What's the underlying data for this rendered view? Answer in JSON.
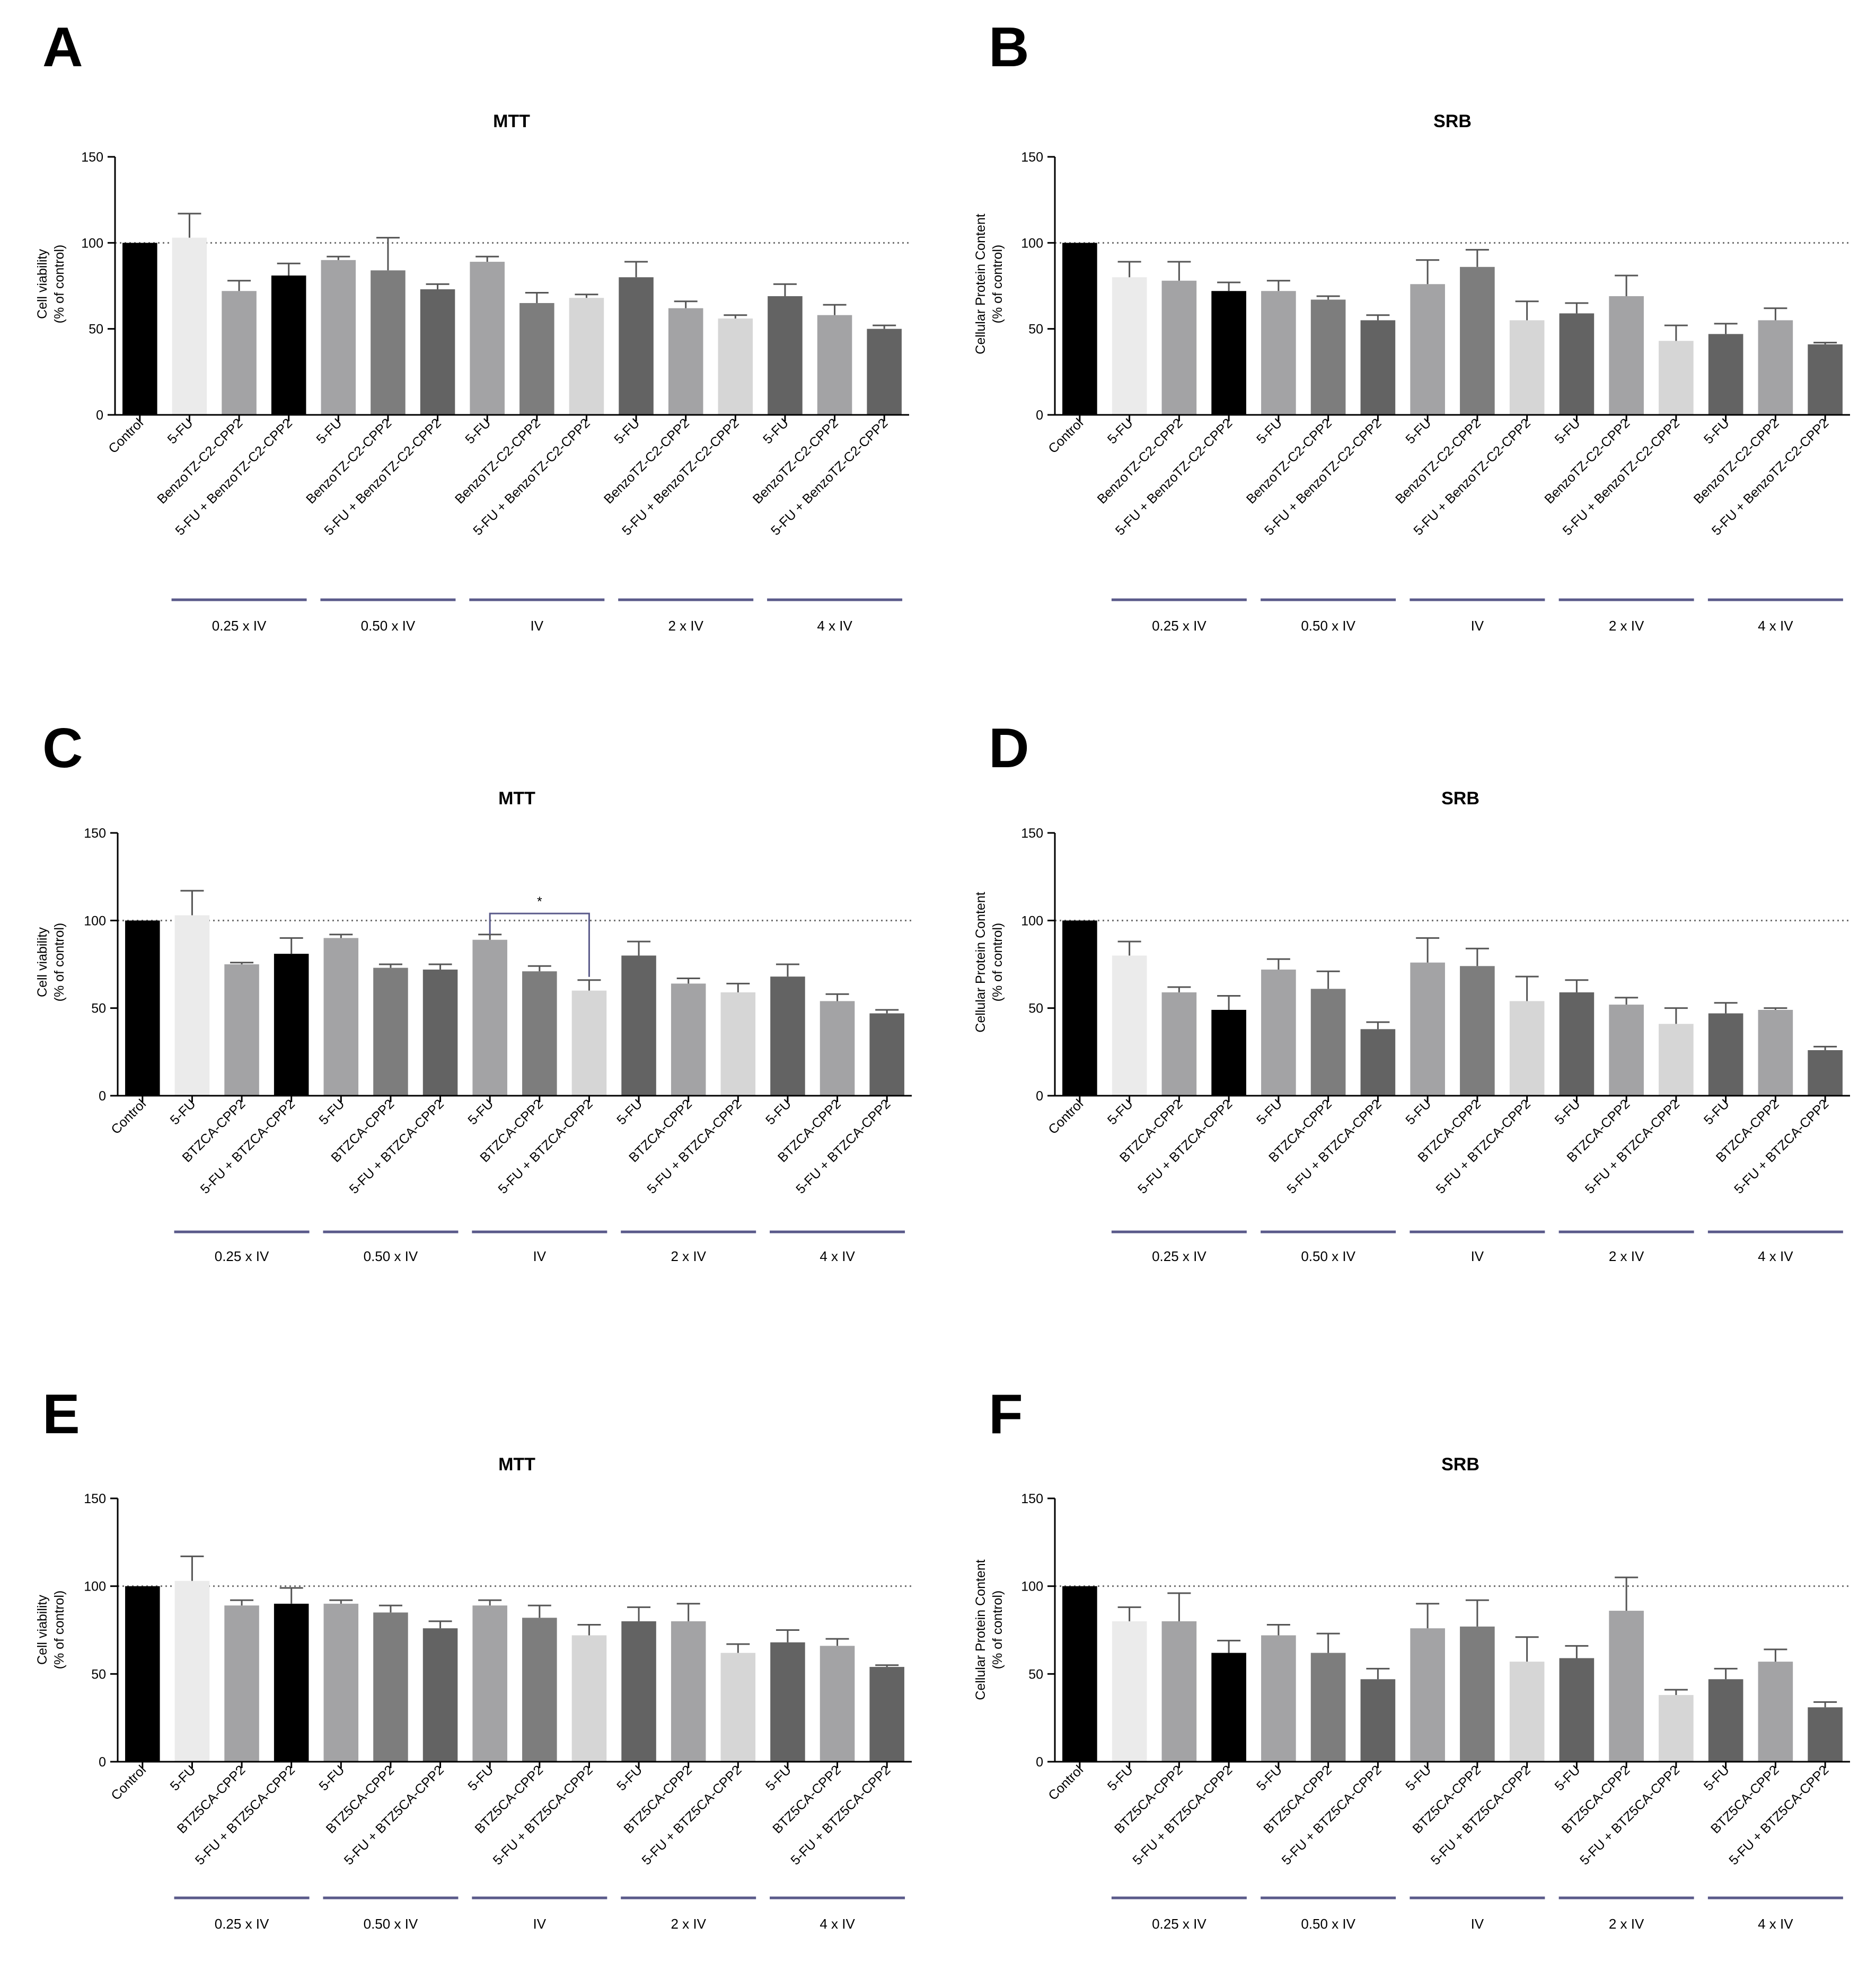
{
  "colors": {
    "black": "#000000",
    "lightest": "#ebebeb",
    "light": "#d6d6d6",
    "mid": "#a3a3a5",
    "dark": "#7d7d7d",
    "darker": "#636363",
    "group_line": "#5a5a8a",
    "reference_line": "#6e6e6e"
  },
  "groups": [
    "0.25 x IV",
    "0.50 x IV",
    "IV",
    "2 x IV",
    "4 x IV"
  ],
  "chart_data": [
    {
      "panel": "A",
      "type": "bar",
      "title": "MTT",
      "ylabel": [
        "Cell viability",
        "(% of control)"
      ],
      "ylim": [
        0,
        150
      ],
      "yticks": [
        0,
        50,
        100,
        150
      ],
      "reference_line": 100,
      "categories": [
        "Control",
        "5-FU",
        "BenzoTZ-C2-CPP2",
        "5-FU + BenzoTZ-C2-CPP2",
        "5-FU",
        "BenzoTZ-C2-CPP2",
        "5-FU + BenzoTZ-C2-CPP2",
        "5-FU",
        "BenzoTZ-C2-CPP2",
        "5-FU + BenzoTZ-C2-CPP2",
        "5-FU",
        "BenzoTZ-C2-CPP2",
        "5-FU + BenzoTZ-C2-CPP2",
        "5-FU",
        "BenzoTZ-C2-CPP2",
        "5-FU + BenzoTZ-C2-CPP2"
      ],
      "values": [
        100,
        103,
        72,
        81,
        90,
        84,
        73,
        89,
        65,
        68,
        80,
        62,
        56,
        69,
        58,
        50
      ],
      "errors": [
        0,
        14,
        6,
        7,
        2,
        19,
        3,
        3,
        6,
        2,
        9,
        4,
        2,
        7,
        6,
        2
      ],
      "bar_colors": [
        "black",
        "lightest",
        "mid",
        "black",
        "mid",
        "dark",
        "darker",
        "mid",
        "dark",
        "light",
        "darker",
        "mid",
        "light",
        "darker",
        "mid",
        "darker"
      ],
      "significance": []
    },
    {
      "panel": "B",
      "type": "bar",
      "title": "SRB",
      "ylabel": [
        "Cellular Protein Content",
        "(% of control)"
      ],
      "ylim": [
        0,
        150
      ],
      "yticks": [
        0,
        50,
        100,
        150
      ],
      "reference_line": 100,
      "categories": [
        "Control",
        "5-FU",
        "BenzoTZ-C2-CPP2",
        "5-FU + BenzoTZ-C2-CPP2",
        "5-FU",
        "BenzoTZ-C2-CPP2",
        "5-FU + BenzoTZ-C2-CPP2",
        "5-FU",
        "BenzoTZ-C2-CPP2",
        "5-FU + BenzoTZ-C2-CPP2",
        "5-FU",
        "BenzoTZ-C2-CPP2",
        "5-FU + BenzoTZ-C2-CPP2",
        "5-FU",
        "BenzoTZ-C2-CPP2",
        "5-FU + BenzoTZ-C2-CPP2"
      ],
      "values": [
        100,
        80,
        78,
        72,
        72,
        67,
        55,
        76,
        86,
        55,
        59,
        69,
        43,
        47,
        55,
        41
      ],
      "errors": [
        0,
        9,
        11,
        5,
        6,
        2,
        3,
        14,
        10,
        11,
        6,
        12,
        9,
        6,
        7,
        1
      ],
      "bar_colors": [
        "black",
        "lightest",
        "mid",
        "black",
        "mid",
        "dark",
        "darker",
        "mid",
        "dark",
        "light",
        "darker",
        "mid",
        "light",
        "darker",
        "mid",
        "darker"
      ],
      "significance": []
    },
    {
      "panel": "C",
      "type": "bar",
      "title": "MTT",
      "ylabel": [
        "Cell viability",
        "(% of control)"
      ],
      "ylim": [
        0,
        150
      ],
      "yticks": [
        0,
        50,
        100,
        150
      ],
      "reference_line": 100,
      "categories": [
        "Control",
        "5-FU",
        "BTZCA-CPP2",
        "5-FU + BTZCA-CPP2",
        "5-FU",
        "BTZCA-CPP2",
        "5-FU + BTZCA-CPP2",
        "5-FU",
        "BTZCA-CPP2",
        "5-FU + BTZCA-CPP2",
        "5-FU",
        "BTZCA-CPP2",
        "5-FU + BTZCA-CPP2",
        "5-FU",
        "BTZCA-CPP2",
        "5-FU + BTZCA-CPP2"
      ],
      "values": [
        100,
        103,
        75,
        81,
        90,
        73,
        72,
        89,
        71,
        60,
        80,
        64,
        59,
        68,
        54,
        47
      ],
      "errors": [
        0,
        14,
        1,
        9,
        2,
        2,
        3,
        3,
        3,
        6,
        8,
        3,
        5,
        7,
        4,
        2
      ],
      "bar_colors": [
        "black",
        "lightest",
        "mid",
        "black",
        "mid",
        "dark",
        "darker",
        "mid",
        "dark",
        "light",
        "darker",
        "mid",
        "light",
        "darker",
        "mid",
        "darker"
      ],
      "significance": [
        {
          "from": 7,
          "to": 9,
          "label": "*",
          "y": 104
        }
      ]
    },
    {
      "panel": "D",
      "type": "bar",
      "title": "SRB",
      "ylabel": [
        "Cellular Protein Content",
        "(% of control)"
      ],
      "ylim": [
        0,
        150
      ],
      "yticks": [
        0,
        50,
        100,
        150
      ],
      "reference_line": 100,
      "categories": [
        "Control",
        "5-FU",
        "BTZCA-CPP2",
        "5-FU + BTZCA-CPP2",
        "5-FU",
        "BTZCA-CPP2",
        "5-FU + BTZCA-CPP2",
        "5-FU",
        "BTZCA-CPP2",
        "5-FU + BTZCA-CPP2",
        "5-FU",
        "BTZCA-CPP2",
        "5-FU + BTZCA-CPP2",
        "5-FU",
        "BTZCA-CPP2",
        "5-FU + BTZCA-CPP2"
      ],
      "values": [
        100,
        80,
        59,
        49,
        72,
        61,
        38,
        76,
        74,
        54,
        59,
        52,
        41,
        47,
        49,
        26
      ],
      "errors": [
        0,
        8,
        3,
        8,
        6,
        10,
        4,
        14,
        10,
        14,
        7,
        4,
        9,
        6,
        1,
        2
      ],
      "bar_colors": [
        "black",
        "lightest",
        "mid",
        "black",
        "mid",
        "dark",
        "darker",
        "mid",
        "dark",
        "light",
        "darker",
        "mid",
        "light",
        "darker",
        "mid",
        "darker"
      ],
      "significance": []
    },
    {
      "panel": "E",
      "type": "bar",
      "title": "MTT",
      "ylabel": [
        "Cell viability",
        "(% of control)"
      ],
      "ylim": [
        0,
        150
      ],
      "yticks": [
        0,
        50,
        100,
        150
      ],
      "reference_line": 100,
      "categories": [
        "Control",
        "5-FU",
        "BTZ5CA-CPP2",
        "5-FU + BTZ5CA-CPP2",
        "5-FU",
        "BTZ5CA-CPP2",
        "5-FU + BTZ5CA-CPP2",
        "5-FU",
        "BTZ5CA-CPP2",
        "5-FU + BTZ5CA-CPP2",
        "5-FU",
        "BTZ5CA-CPP2",
        "5-FU + BTZ5CA-CPP2",
        "5-FU",
        "BTZ5CA-CPP2",
        "5-FU + BTZ5CA-CPP2"
      ],
      "values": [
        100,
        103,
        89,
        90,
        90,
        85,
        76,
        89,
        82,
        72,
        80,
        80,
        62,
        68,
        66,
        54
      ],
      "errors": [
        0,
        14,
        3,
        9,
        2,
        4,
        4,
        3,
        7,
        6,
        8,
        10,
        5,
        7,
        4,
        1
      ],
      "bar_colors": [
        "black",
        "lightest",
        "mid",
        "black",
        "mid",
        "dark",
        "darker",
        "mid",
        "dark",
        "light",
        "darker",
        "mid",
        "light",
        "darker",
        "mid",
        "darker"
      ],
      "significance": []
    },
    {
      "panel": "F",
      "type": "bar",
      "title": "SRB",
      "ylabel": [
        "Cellular Protein Content",
        "(% of control)"
      ],
      "ylim": [
        0,
        150
      ],
      "yticks": [
        0,
        50,
        100,
        150
      ],
      "reference_line": 100,
      "categories": [
        "Control",
        "5-FU",
        "BTZ5CA-CPP2",
        "5-FU + BTZ5CA-CPP2",
        "5-FU",
        "BTZ5CA-CPP2",
        "5-FU + BTZ5CA-CPP2",
        "5-FU",
        "BTZ5CA-CPP2",
        "5-FU + BTZ5CA-CPP2",
        "5-FU",
        "BTZ5CA-CPP2",
        "5-FU + BTZ5CA-CPP2",
        "5-FU",
        "BTZ5CA-CPP2",
        "5-FU + BTZ5CA-CPP2"
      ],
      "values": [
        100,
        80,
        80,
        62,
        72,
        62,
        47,
        76,
        77,
        57,
        59,
        86,
        38,
        47,
        57,
        31
      ],
      "errors": [
        0,
        8,
        16,
        7,
        6,
        11,
        6,
        14,
        15,
        14,
        7,
        19,
        3,
        6,
        7,
        3
      ],
      "bar_colors": [
        "black",
        "lightest",
        "mid",
        "black",
        "mid",
        "dark",
        "darker",
        "mid",
        "dark",
        "light",
        "darker",
        "mid",
        "light",
        "darker",
        "mid",
        "darker"
      ],
      "significance": []
    }
  ]
}
